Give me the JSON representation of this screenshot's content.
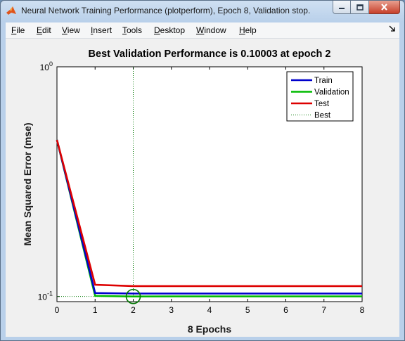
{
  "window": {
    "title": "Neural Network Training Performance (plotperform), Epoch 8, Validation stop.",
    "icons": [
      "matlab-logo-icon",
      "minimize-icon",
      "maximize-icon",
      "close-icon",
      "dock-arrow-icon"
    ]
  },
  "menu": [
    {
      "u": "F",
      "rest": "ile"
    },
    {
      "u": "E",
      "rest": "dit"
    },
    {
      "u": "V",
      "rest": "iew"
    },
    {
      "u": "I",
      "rest": "nsert"
    },
    {
      "u": "T",
      "rest": "ools"
    },
    {
      "u": "D",
      "rest": "esktop"
    },
    {
      "u": "W",
      "rest": "indow"
    },
    {
      "u": "H",
      "rest": "elp"
    }
  ],
  "chart_data": {
    "type": "line",
    "title": "Best Validation Performance is 0.10003 at epoch 2",
    "xlabel": "8 Epochs",
    "ylabel": "Mean Squared Error  (mse)",
    "xlim": [
      0,
      8
    ],
    "ylim": [
      0.095,
      1.0
    ],
    "yscale": "log",
    "xticks": [
      "0",
      "1",
      "2",
      "3",
      "4",
      "5",
      "6",
      "7",
      "8"
    ],
    "yticks": [
      {
        "base": "10",
        "exp": "0",
        "value": 1.0
      },
      {
        "base": "10",
        "exp": "-1",
        "value": 0.1
      }
    ],
    "x": [
      0,
      1,
      2,
      3,
      4,
      5,
      6,
      7,
      8
    ],
    "series": [
      {
        "name": "Train",
        "color": "#0000cc",
        "values": [
          0.48,
          0.1035,
          0.103,
          0.103,
          0.103,
          0.103,
          0.103,
          0.103,
          0.103
        ]
      },
      {
        "name": "Validation",
        "color": "#00bb00",
        "values": [
          0.48,
          0.1006,
          0.10003,
          0.1001,
          0.1001,
          0.1001,
          0.1001,
          0.1001,
          0.1001
        ]
      },
      {
        "name": "Test",
        "color": "#dd0000",
        "values": [
          0.48,
          0.1125,
          0.111,
          0.111,
          0.111,
          0.111,
          0.111,
          0.111,
          0.111
        ]
      }
    ],
    "best": {
      "name": "Best",
      "epoch": 2,
      "value": 0.10003,
      "color": "#007700"
    },
    "grid": false,
    "legend_position": "top-right"
  }
}
